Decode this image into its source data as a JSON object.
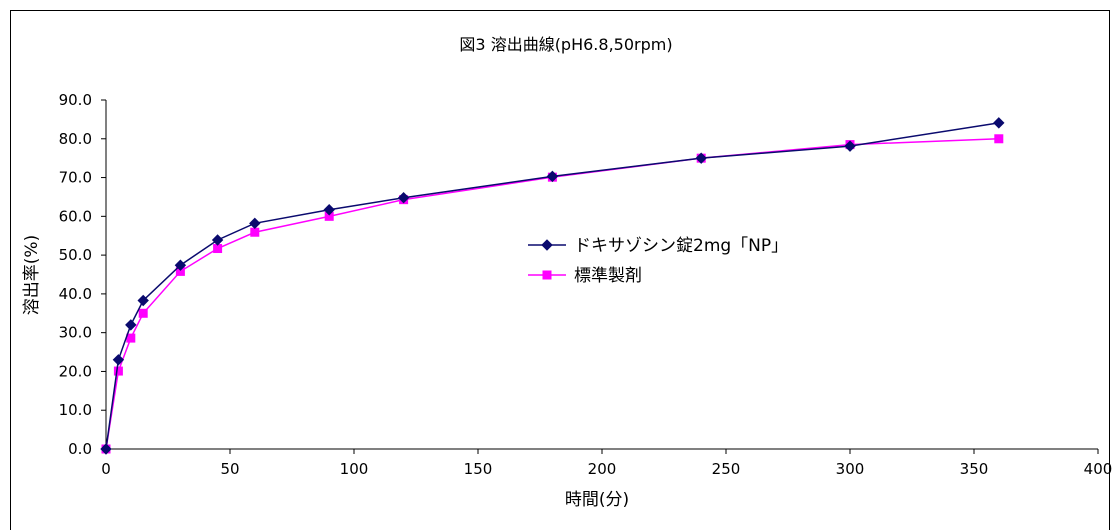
{
  "chart_data": {
    "type": "line",
    "title": "図3 溶出曲線(pH6.8,50rpm)",
    "xlabel": "時間(分)",
    "ylabel": "溶出率(%)",
    "xlim": [
      0,
      400
    ],
    "ylim": [
      0,
      90
    ],
    "xticks": [
      0,
      50,
      100,
      150,
      200,
      250,
      300,
      350,
      400
    ],
    "yticks": [
      0,
      10,
      20,
      30,
      40,
      50,
      60,
      70,
      80,
      90
    ],
    "xtick_labels": [
      "0",
      "50",
      "100",
      "150",
      "200",
      "250",
      "300",
      "350",
      "400"
    ],
    "ytick_labels": [
      "0.0",
      "10.0",
      "20.0",
      "30.0",
      "40.0",
      "50.0",
      "60.0",
      "70.0",
      "80.0",
      "90.0"
    ],
    "grid": false,
    "legend_position": "center-right",
    "x": [
      0,
      5,
      10,
      15,
      30,
      45,
      60,
      90,
      120,
      180,
      240,
      300,
      360
    ],
    "series": [
      {
        "name": "ドキサゾシン錠2mg「NP」",
        "color": "#0a0a6e",
        "marker": "diamond",
        "values": [
          0,
          23.0,
          32.0,
          38.3,
          47.4,
          53.9,
          58.2,
          61.7,
          64.8,
          70.3,
          75.0,
          78.1,
          84.1
        ]
      },
      {
        "name": "標準製剤",
        "color": "#ff00ff",
        "marker": "square",
        "values": [
          0,
          20.1,
          28.6,
          35.0,
          45.8,
          51.7,
          55.9,
          60.0,
          64.3,
          70.1,
          75.0,
          78.5,
          80.0
        ]
      }
    ]
  }
}
